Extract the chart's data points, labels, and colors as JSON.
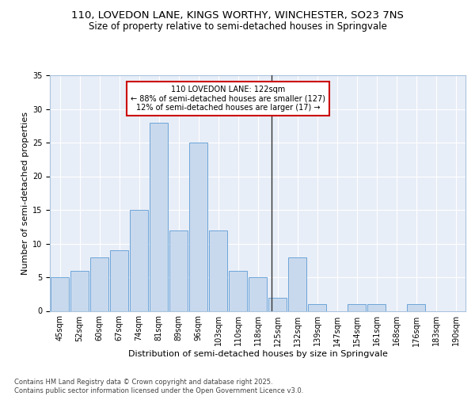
{
  "title1": "110, LOVEDON LANE, KINGS WORTHY, WINCHESTER, SO23 7NS",
  "title2": "Size of property relative to semi-detached houses in Springvale",
  "xlabel": "Distribution of semi-detached houses by size in Springvale",
  "ylabel": "Number of semi-detached properties",
  "bar_labels": [
    "45sqm",
    "52sqm",
    "60sqm",
    "67sqm",
    "74sqm",
    "81sqm",
    "89sqm",
    "96sqm",
    "103sqm",
    "110sqm",
    "118sqm",
    "125sqm",
    "132sqm",
    "139sqm",
    "147sqm",
    "154sqm",
    "161sqm",
    "168sqm",
    "176sqm",
    "183sqm",
    "190sqm"
  ],
  "bar_values": [
    5,
    6,
    8,
    9,
    15,
    28,
    12,
    25,
    12,
    6,
    5,
    2,
    8,
    1,
    0,
    1,
    1,
    0,
    1,
    0,
    0
  ],
  "bar_color": "#c9d9ed",
  "bar_edge_color": "#5b9bd5",
  "bg_color": "#e8eef7",
  "grid_color": "#ffffff",
  "vline_x_index": 10.714,
  "vline_color": "#333333",
  "annotation_text": "110 LOVEDON LANE: 122sqm\n← 88% of semi-detached houses are smaller (127)\n12% of semi-detached houses are larger (17) →",
  "annotation_box_color": "#cc0000",
  "footer_text": "Contains HM Land Registry data © Crown copyright and database right 2025.\nContains public sector information licensed under the Open Government Licence v3.0.",
  "ylim": [
    0,
    35
  ],
  "title1_fontsize": 9.5,
  "title2_fontsize": 8.5,
  "tick_fontsize": 7,
  "ylabel_fontsize": 8,
  "xlabel_fontsize": 8,
  "annotation_fontsize": 7,
  "footer_fontsize": 6
}
